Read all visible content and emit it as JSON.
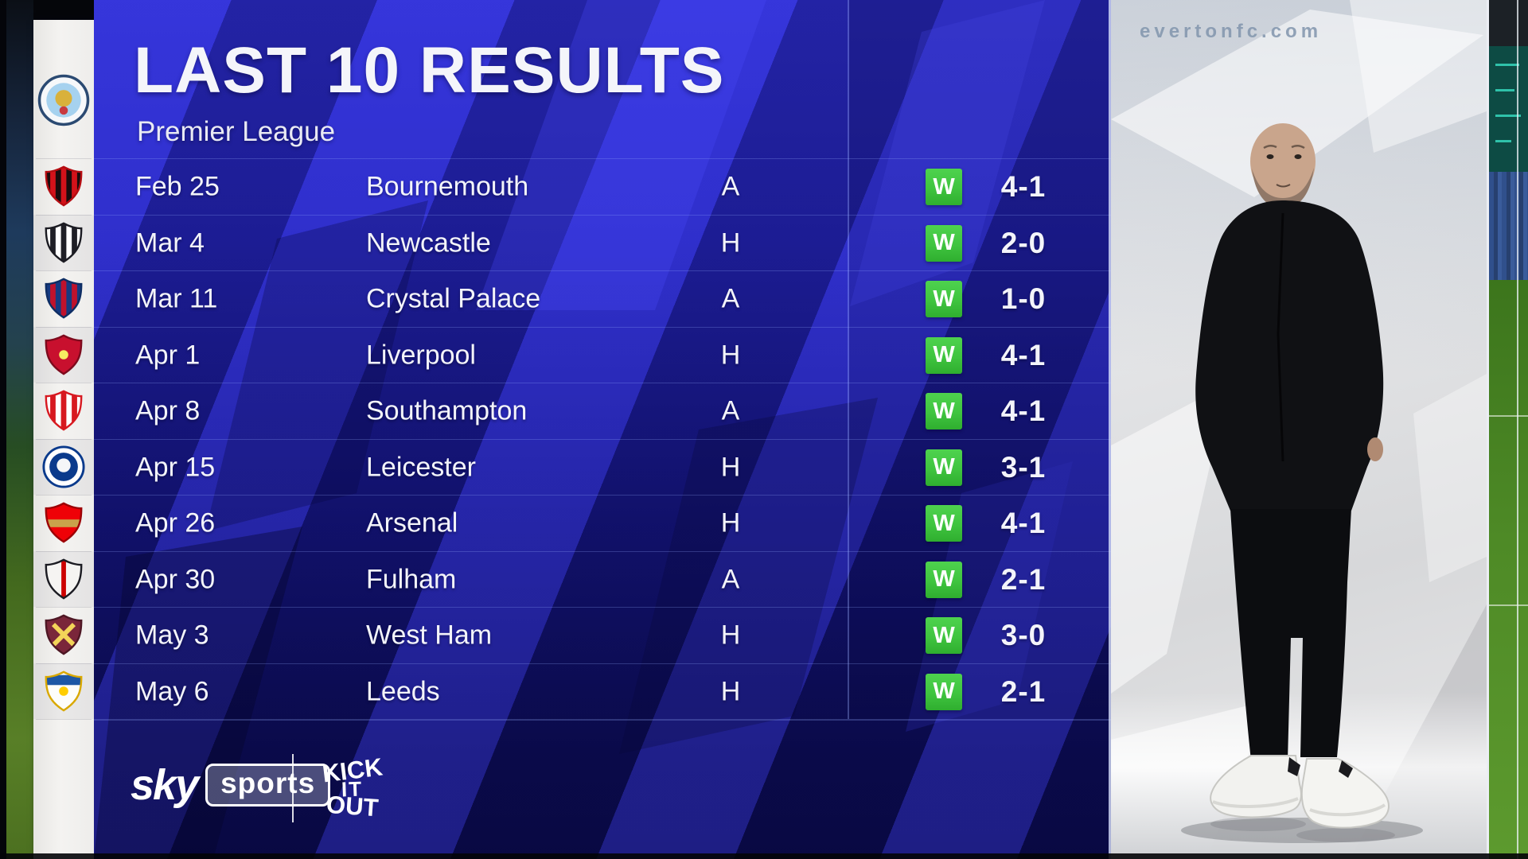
{
  "header": {
    "title": "LAST 10 RESULTS",
    "subtitle": "Premier League"
  },
  "team": {
    "name": "Manchester City",
    "badge": {
      "shape": "circle",
      "ring": "#f6f8fa",
      "border": "#2b4a72",
      "inner": "#a6d2ef",
      "core": "#d9b13b",
      "dot": "#c8393f"
    }
  },
  "results": [
    {
      "date": "Feb 25",
      "opponent": "Bournemouth",
      "venue": "A",
      "outcome": "W",
      "score": "4-1",
      "badge": {
        "shape": "shield",
        "bg": "#1a0c0e",
        "border": "#b50d12",
        "stripes": "#d3121a"
      }
    },
    {
      "date": "Mar 4",
      "opponent": "Newcastle",
      "venue": "H",
      "outcome": "W",
      "score": "2-0",
      "badge": {
        "shape": "shield",
        "bg": "#ffffff",
        "border": "#1b1b22",
        "stripes": "#1f1f26"
      }
    },
    {
      "date": "Mar 11",
      "opponent": "Crystal Palace",
      "venue": "A",
      "outcome": "W",
      "score": "1-0",
      "badge": {
        "shape": "shield",
        "bg": "#153a82",
        "border": "#0e2d63",
        "stripes": "#c0122c"
      }
    },
    {
      "date": "Apr 1",
      "opponent": "Liverpool",
      "venue": "H",
      "outcome": "W",
      "score": "4-1",
      "badge": {
        "shape": "shield",
        "bg": "#c8102e",
        "border": "#7d0a1d",
        "accent": "#f6eb61"
      }
    },
    {
      "date": "Apr 8",
      "opponent": "Southampton",
      "venue": "A",
      "outcome": "W",
      "score": "4-1",
      "badge": {
        "shape": "shield",
        "bg": "#ffffff",
        "border": "#d71920",
        "stripes": "#d71920"
      }
    },
    {
      "date": "Apr 15",
      "opponent": "Leicester",
      "venue": "H",
      "outcome": "W",
      "score": "3-1",
      "badge": {
        "shape": "circle",
        "ring": "#ffffff",
        "border": "#0a3a8c",
        "inner": "#0a3a8c",
        "core": "#f5f6f8"
      }
    },
    {
      "date": "Apr 26",
      "opponent": "Arsenal",
      "venue": "H",
      "outcome": "W",
      "score": "4-1",
      "badge": {
        "shape": "shield",
        "bg": "#ef0107",
        "border": "#9c0004",
        "band": "#c9a24b"
      }
    },
    {
      "date": "Apr 30",
      "opponent": "Fulham",
      "venue": "A",
      "outcome": "W",
      "score": "2-1",
      "badge": {
        "shape": "shield",
        "bg": "#f5f4f2",
        "border": "#1b1b22",
        "stripe1": "#cc0000"
      }
    },
    {
      "date": "May 3",
      "opponent": "West Ham",
      "venue": "H",
      "outcome": "W",
      "score": "3-0",
      "badge": {
        "shape": "shield",
        "bg": "#7a263a",
        "border": "#4e1724",
        "cross": "#f3d459"
      }
    },
    {
      "date": "May 6",
      "opponent": "Leeds",
      "venue": "H",
      "outcome": "W",
      "score": "2-1",
      "badge": {
        "shape": "shield",
        "bg": "#fdfdfb",
        "border": "#d9a800",
        "topband": "#1d57a5",
        "accent": "#ffcd00"
      }
    }
  ],
  "footer": {
    "sky": "sky",
    "sports": "sports",
    "kio": [
      "KICK",
      "IT",
      "OUT"
    ]
  },
  "photo": {
    "watermark": "evertonfc.com"
  },
  "colors": {
    "win_badge": "#3fc43f",
    "panel_blue": "#1d1db0",
    "stripe_blue": "#3c3ce8",
    "strip_bg": "#f0efed"
  }
}
